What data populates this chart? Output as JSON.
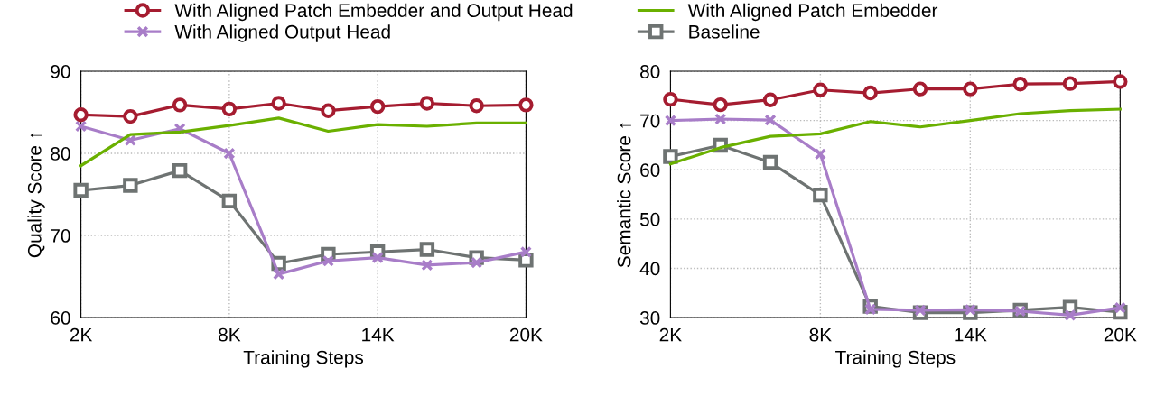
{
  "chart_data": [
    {
      "type": "line",
      "xlabel": "Training Steps",
      "ylabel": "Quality Score ↑",
      "legend": "top",
      "grid": true,
      "line_style": "solid",
      "x": [
        2,
        4,
        6,
        8,
        10,
        12,
        14,
        16,
        18,
        20
      ],
      "xlim": [
        2,
        20
      ],
      "xticks": [
        {
          "value": 2,
          "label": "2K"
        },
        {
          "value": 8,
          "label": "8K"
        },
        {
          "value": 14,
          "label": "14K"
        },
        {
          "value": 20,
          "label": "20K"
        }
      ],
      "ylim": [
        60,
        90
      ],
      "yticks": [
        60,
        70,
        80,
        90
      ],
      "series": [
        {
          "name": "With Aligned Patch Embedder and Output Head",
          "color": "#a51c30",
          "marker": "circle",
          "values": [
            84.7,
            84.5,
            85.9,
            85.4,
            86.1,
            85.2,
            85.7,
            86.1,
            85.8,
            85.9
          ]
        },
        {
          "name": "With Aligned Patch Embedder",
          "color": "#6ab000",
          "marker": "none",
          "values": [
            78.5,
            82.3,
            82.6,
            83.4,
            84.3,
            82.7,
            83.5,
            83.3,
            83.7,
            83.7
          ]
        },
        {
          "name": "With Aligned Output Head",
          "color": "#a87dc8",
          "marker": "cross",
          "values": [
            83.3,
            81.6,
            83.0,
            80.0,
            65.3,
            66.9,
            67.3,
            66.4,
            66.7,
            68.0
          ]
        },
        {
          "name": "Baseline",
          "color": "#6e7372",
          "marker": "square",
          "values": [
            75.5,
            76.1,
            77.9,
            74.2,
            66.6,
            67.7,
            68.0,
            68.3,
            67.3,
            67.0
          ]
        }
      ]
    },
    {
      "type": "line",
      "xlabel": "Training Steps",
      "ylabel": "Semantic Score ↑",
      "grid": true,
      "line_style": "solid",
      "x": [
        2,
        4,
        6,
        8,
        10,
        12,
        14,
        16,
        18,
        20
      ],
      "xlim": [
        2,
        20
      ],
      "xticks": [
        {
          "value": 2,
          "label": "2K"
        },
        {
          "value": 8,
          "label": "8K"
        },
        {
          "value": 14,
          "label": "14K"
        },
        {
          "value": 20,
          "label": "20K"
        }
      ],
      "ylim": [
        30,
        80
      ],
      "yticks": [
        30,
        40,
        50,
        60,
        70,
        80
      ],
      "series": [
        {
          "color": "#a51c30",
          "marker": "circle",
          "values": [
            74.3,
            73.2,
            74.2,
            76.2,
            75.6,
            76.4,
            76.4,
            77.4,
            77.5,
            77.9
          ]
        },
        {
          "color": "#6ab000",
          "marker": "none",
          "values": [
            61.2,
            64.5,
            66.8,
            67.3,
            69.8,
            68.7,
            70.0,
            71.4,
            72.0,
            72.3
          ]
        },
        {
          "color": "#a87dc8",
          "marker": "cross",
          "values": [
            70.0,
            70.3,
            70.1,
            63.2,
            31.7,
            31.5,
            31.6,
            31.3,
            30.5,
            32.0
          ]
        },
        {
          "color": "#6e7372",
          "marker": "square",
          "values": [
            62.7,
            65.0,
            61.5,
            54.9,
            32.3,
            31.0,
            31.0,
            31.5,
            32.1,
            31.1
          ]
        }
      ]
    }
  ]
}
